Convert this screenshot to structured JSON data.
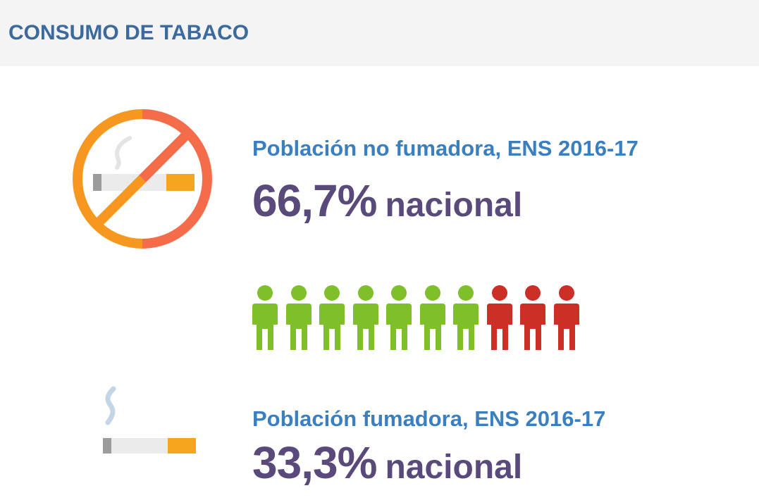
{
  "header": {
    "title": "CONSUMO DE TABACO"
  },
  "non_smokers": {
    "icon": "no-smoking-icon",
    "label": "Población no fumadora, ENS 2016-17",
    "percent": "66,7%",
    "unit": "nacional"
  },
  "pictogram": {
    "total": 10,
    "non_smokers": 7,
    "smokers": 3,
    "colors": {
      "non_smoker": "#7fbf2a",
      "smoker": "#cc2f26"
    }
  },
  "smokers": {
    "icon": "cigarette-icon",
    "label": "Población fumadora, ENS 2016-17",
    "percent": "33,3%",
    "unit": "nacional"
  },
  "colors": {
    "title": "#3b6a9c",
    "label": "#3a7fc0",
    "value": "#5a4a7c",
    "header_bg": "#f4f4f4"
  }
}
